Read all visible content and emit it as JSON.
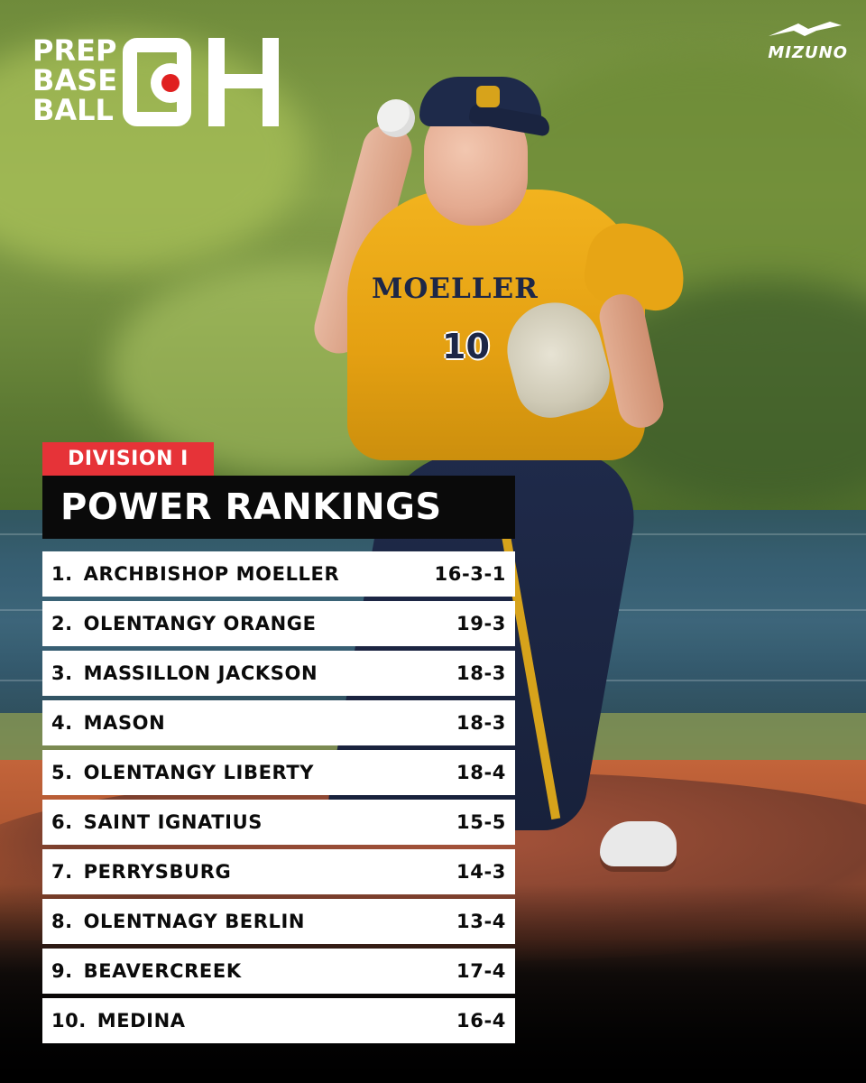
{
  "logos": {
    "prep_baseball_lines": [
      "PREP",
      "BASE",
      "BALL"
    ],
    "state_abbrev_letters": [
      "O",
      "H"
    ],
    "sponsor": "MIZUNO"
  },
  "jersey": {
    "team_text": "MOELLER",
    "number": "10"
  },
  "header": {
    "division": "DIVISION I",
    "title": "POWER RANKINGS"
  },
  "rankings": [
    {
      "rank": "1.",
      "team": "ARCHBISHOP MOELLER",
      "record": "16-3-1"
    },
    {
      "rank": "2.",
      "team": "OLENTANGY ORANGE",
      "record": "19-3"
    },
    {
      "rank": "3.",
      "team": "MASSILLON JACKSON",
      "record": "18-3"
    },
    {
      "rank": "4.",
      "team": "MASON",
      "record": "18-3"
    },
    {
      "rank": "5.",
      "team": "OLENTANGY LIBERTY",
      "record": "18-4"
    },
    {
      "rank": "6.",
      "team": "SAINT IGNATIUS",
      "record": "15-5"
    },
    {
      "rank": "7.",
      "team": "PERRYSBURG",
      "record": "14-3"
    },
    {
      "rank": "8.",
      "team": "OLENTNAGY BERLIN",
      "record": "13-4"
    },
    {
      "rank": "9.",
      "team": "BEAVERCREEK",
      "record": "17-4"
    },
    {
      "rank": "10.",
      "team": "MEDINA",
      "record": "16-4"
    }
  ],
  "colors": {
    "accent_red": "#e63338",
    "title_bg": "#0a0a0a",
    "row_bg": "#ffffff",
    "jersey_gold": "#f2b31e",
    "navy": "#1d2747"
  }
}
